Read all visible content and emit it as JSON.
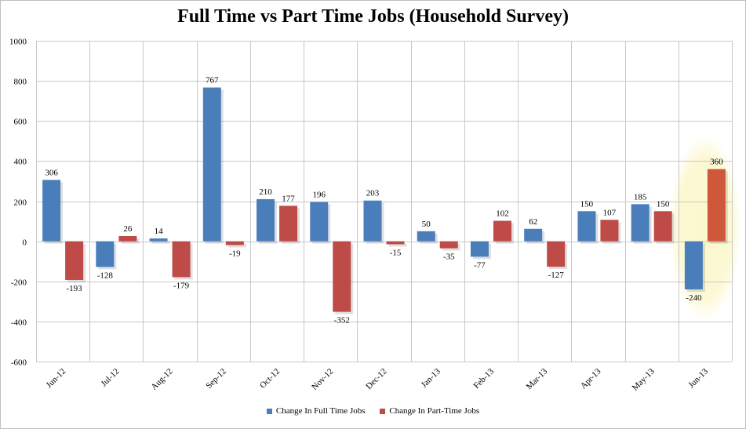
{
  "chart_data": {
    "type": "bar",
    "title": "Full Time vs Part Time Jobs (Household Survey)",
    "categories": [
      "Jun-12",
      "Jul-12",
      "Aug-12",
      "Sep-12",
      "Oct-12",
      "Nov-12",
      "Dec-12",
      "Jan-13",
      "Feb-13",
      "Mar-13",
      "Apr-13",
      "May-13",
      "Jun-13"
    ],
    "series": [
      {
        "name": "Change In Full Time Jobs",
        "color": "#4a7ebb",
        "values": [
          306,
          -128,
          14,
          767,
          210,
          196,
          203,
          50,
          -77,
          62,
          150,
          185,
          -240
        ]
      },
      {
        "name": "Change In Part-Time Jobs",
        "color": "#be4b48",
        "values": [
          -193,
          26,
          -179,
          -19,
          177,
          -352,
          -15,
          -35,
          102,
          -127,
          107,
          150,
          360
        ]
      }
    ],
    "y_ticks": [
      "1000",
      "800",
      "600",
      "400",
      "200",
      "0",
      "-200",
      "-400",
      "-600"
    ],
    "ylim": [
      -600,
      1000
    ],
    "grid": true,
    "legend_position": "bottom",
    "highlight": {
      "category": "Jun-13",
      "color": "#fbf7c9",
      "last_part_time_color": "#d0583a"
    }
  }
}
